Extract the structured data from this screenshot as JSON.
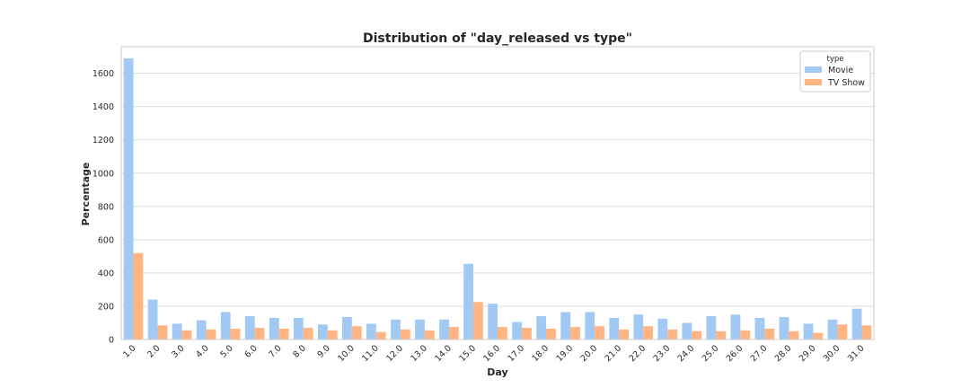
{
  "chart_data": {
    "type": "bar",
    "title": "Distribution of \"day_released vs type\"",
    "xlabel": "Day",
    "ylabel": "Percentage",
    "ylim": [
      0,
      1760
    ],
    "yticks": [
      0,
      200,
      400,
      600,
      800,
      1000,
      1200,
      1400,
      1600
    ],
    "grid": true,
    "legend_title": "type",
    "legend_position": "top-right",
    "categories": [
      "1.0",
      "2.0",
      "3.0",
      "4.0",
      "5.0",
      "6.0",
      "7.0",
      "8.0",
      "9.0",
      "10.0",
      "11.0",
      "12.0",
      "13.0",
      "14.0",
      "15.0",
      "16.0",
      "17.0",
      "18.0",
      "19.0",
      "20.0",
      "21.0",
      "22.0",
      "23.0",
      "24.0",
      "25.0",
      "26.0",
      "27.0",
      "28.0",
      "29.0",
      "30.0",
      "31.0"
    ],
    "series": [
      {
        "name": "Movie",
        "color": "#a1c9f4",
        "values": [
          1690,
          240,
          95,
          115,
          165,
          140,
          130,
          130,
          90,
          135,
          95,
          120,
          120,
          120,
          455,
          215,
          105,
          140,
          165,
          165,
          130,
          150,
          125,
          100,
          140,
          150,
          130,
          135,
          95,
          120,
          185
        ]
      },
      {
        "name": "TV Show",
        "color": "#ffb482",
        "values": [
          520,
          85,
          55,
          60,
          65,
          70,
          65,
          70,
          55,
          80,
          45,
          60,
          55,
          75,
          225,
          75,
          70,
          65,
          75,
          80,
          60,
          80,
          60,
          50,
          50,
          55,
          65,
          50,
          40,
          90,
          85
        ]
      }
    ]
  }
}
